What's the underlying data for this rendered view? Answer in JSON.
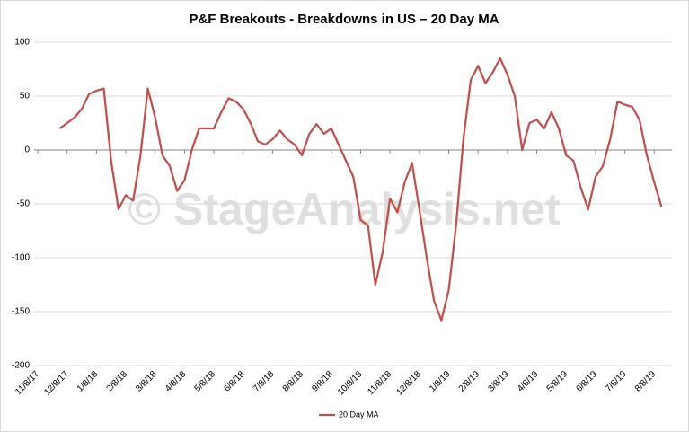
{
  "chart_data": {
    "type": "line",
    "title": "P&F Breakouts - Breakdowns in US – 20 Day MA",
    "watermark": "© StageAnalysis.net",
    "categories": [
      "11/8/17",
      null,
      null,
      null,
      "12/8/17",
      null,
      null,
      null,
      "1/8/18",
      null,
      null,
      null,
      "2/8/18",
      null,
      null,
      null,
      "3/8/18",
      null,
      null,
      null,
      "4/8/18",
      null,
      null,
      null,
      "5/8/18",
      null,
      null,
      null,
      "6/8/18",
      null,
      null,
      null,
      "7/8/18",
      null,
      null,
      null,
      "8/8/18",
      null,
      null,
      null,
      "9/8/18",
      null,
      null,
      null,
      "10/8/18",
      null,
      null,
      null,
      "11/8/18",
      null,
      null,
      null,
      "12/8/18",
      null,
      null,
      null,
      "1/8/19",
      null,
      null,
      null,
      "2/8/19",
      null,
      null,
      null,
      "3/8/19",
      null,
      null,
      null,
      "4/8/19",
      null,
      null,
      null,
      "5/8/19",
      null,
      null,
      null,
      "6/8/19",
      null,
      null,
      null,
      "7/8/19",
      null,
      null,
      null,
      "8/8/19",
      null
    ],
    "series": [
      {
        "name": "20 Day MA",
        "color": "#c0504d",
        "values": [
          null,
          null,
          null,
          20,
          25,
          30,
          38,
          52,
          55,
          57,
          -10,
          -55,
          -42,
          -47,
          -5,
          57,
          30,
          -5,
          -15,
          -38,
          -28,
          0,
          20,
          20,
          20,
          35,
          48,
          45,
          38,
          25,
          8,
          5,
          10,
          18,
          10,
          5,
          -5,
          15,
          24,
          15,
          20,
          5,
          -10,
          -25,
          -65,
          -70,
          -125,
          -95,
          -45,
          -58,
          -30,
          -12,
          -55,
          -100,
          -140,
          -158,
          -130,
          -70,
          10,
          65,
          78,
          62,
          72,
          85,
          70,
          50,
          0,
          25,
          28,
          20,
          35,
          20,
          -5,
          -10,
          -35,
          -55,
          -25,
          -15,
          10,
          45,
          42,
          40,
          28,
          -5,
          -30,
          -53
        ]
      }
    ],
    "ylim": [
      -200,
      100
    ],
    "yticks": [
      -200,
      -150,
      -100,
      -50,
      0,
      50,
      100
    ],
    "grid": true,
    "legend": "bottom"
  }
}
